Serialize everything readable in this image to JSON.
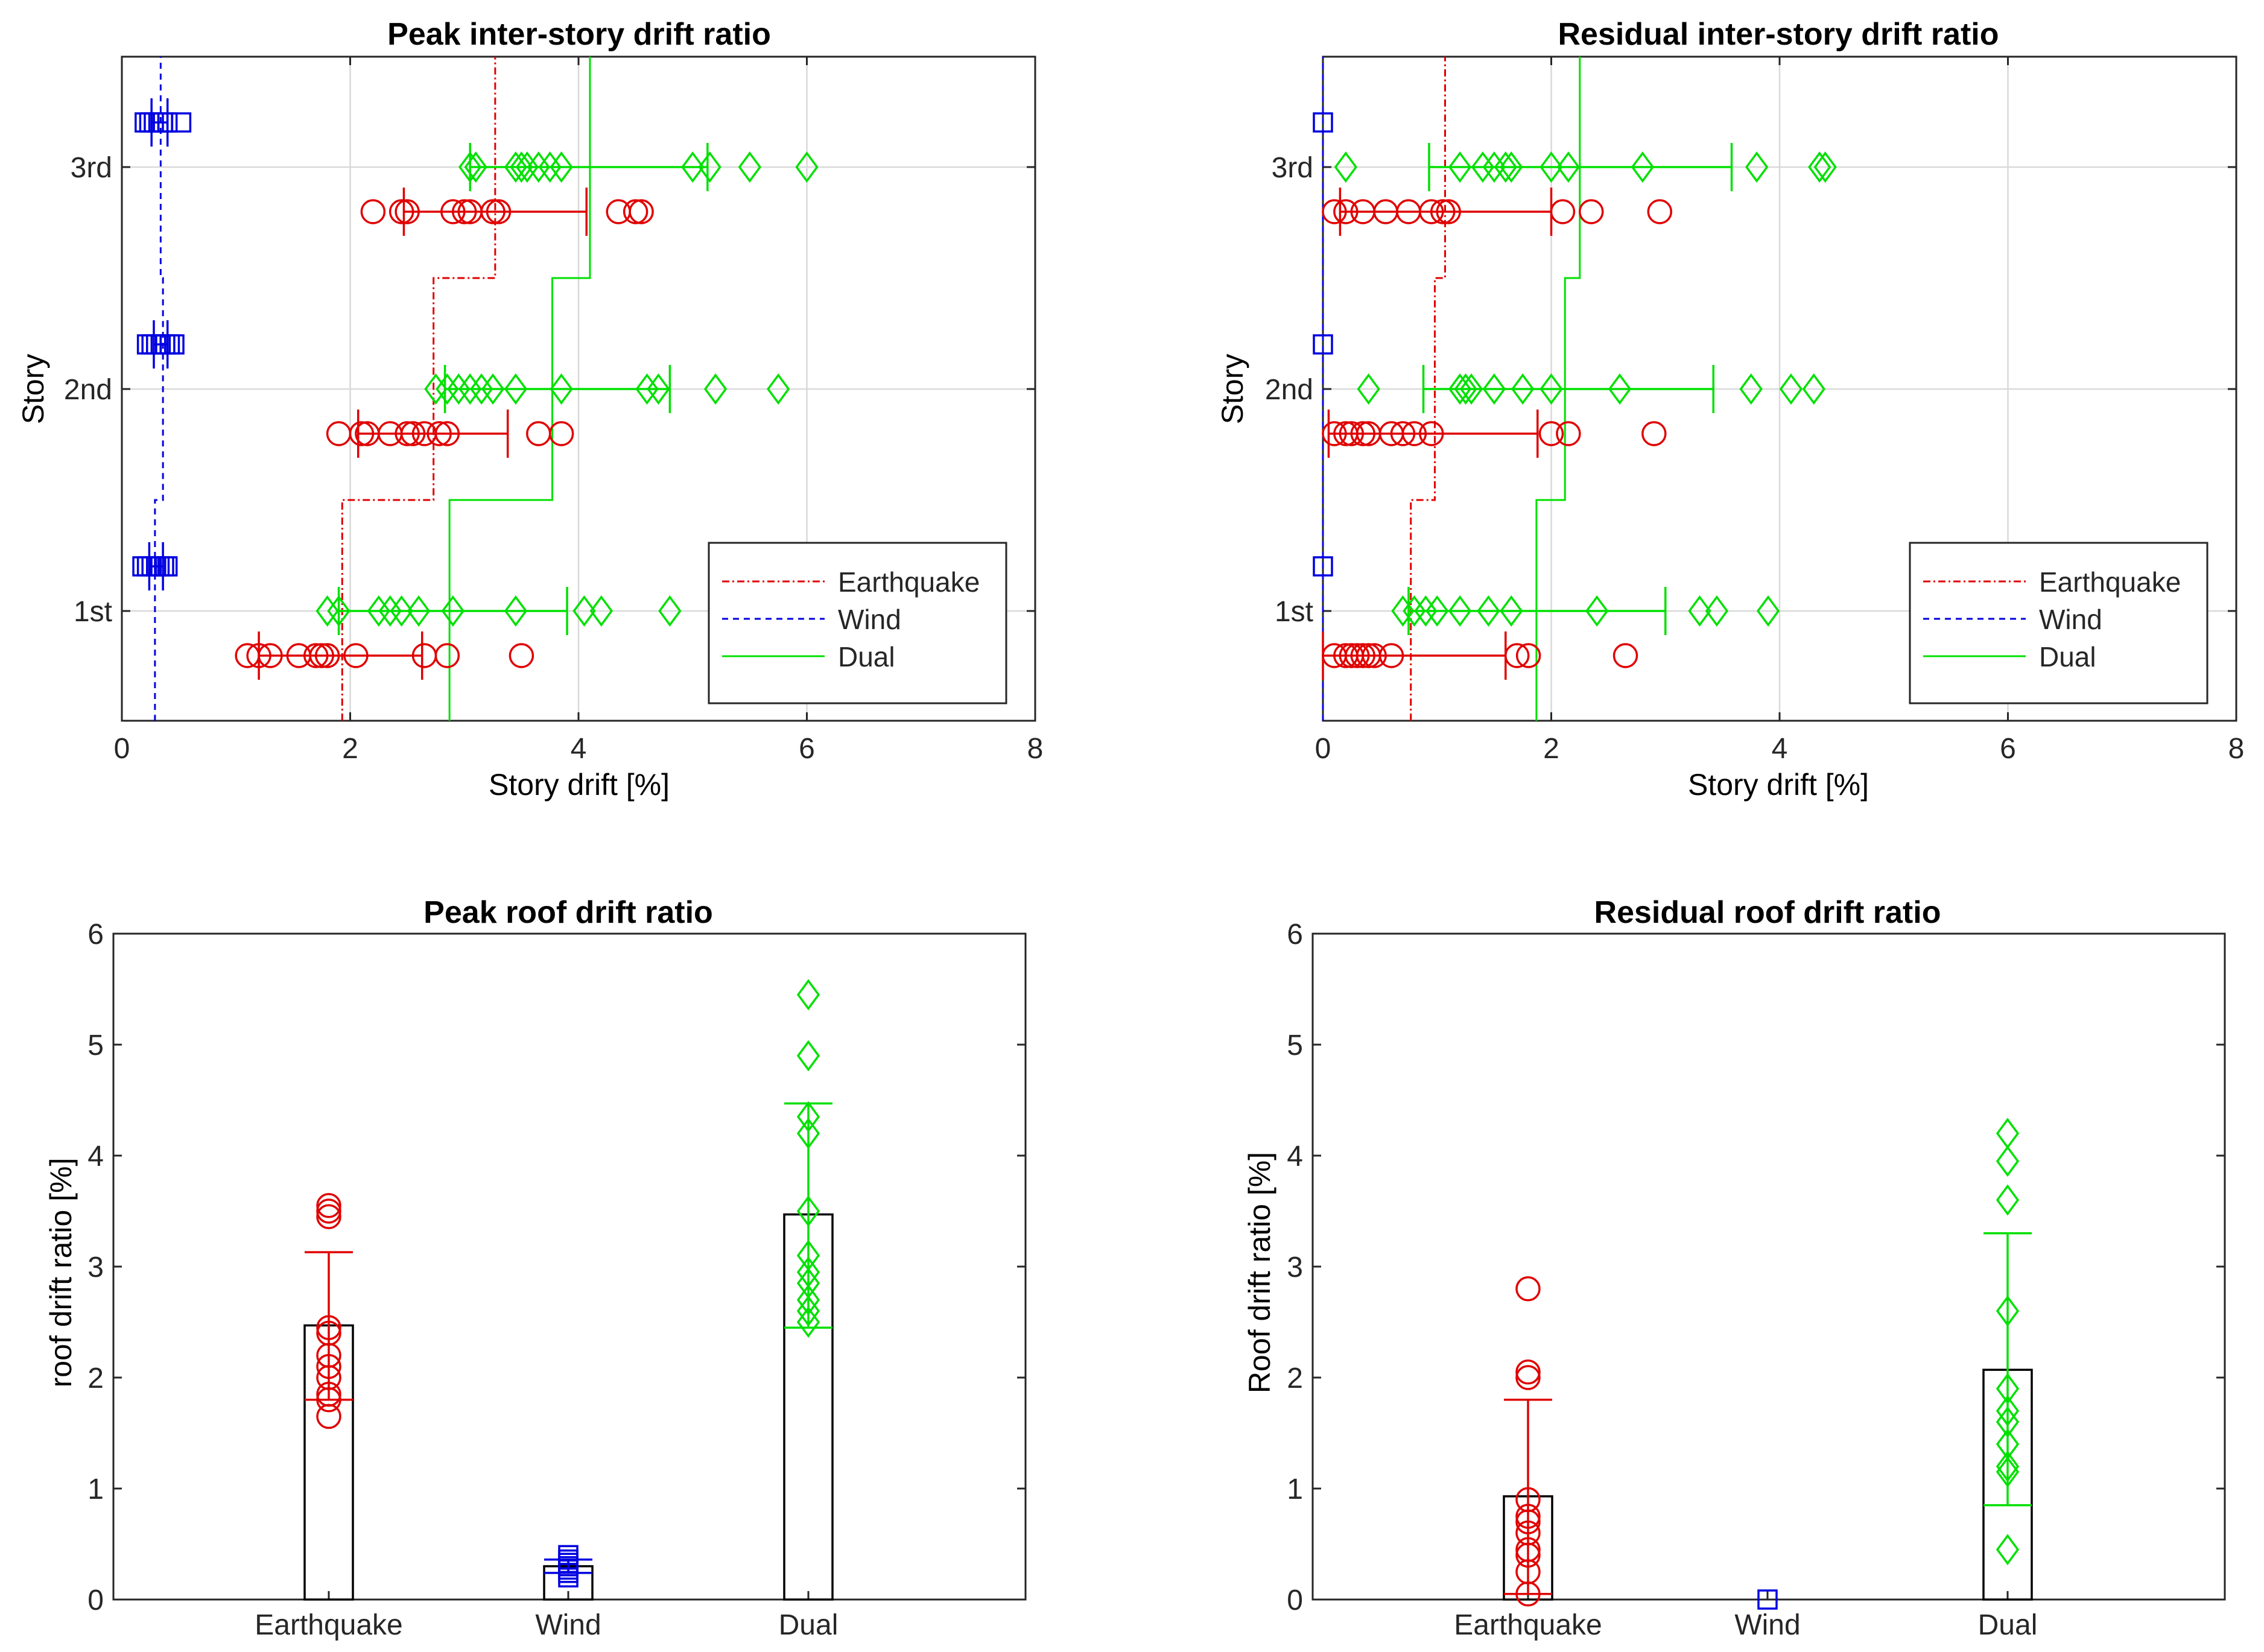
{
  "colors": {
    "earthquake": "#e00000",
    "wind": "#0000e0",
    "dual": "#00e000",
    "axis": "#000000",
    "grid": "#d9d9d9"
  },
  "chart_data": [
    {
      "type": "scatter",
      "title": "Peak inter-story drift ratio",
      "xlabel": "Story drift [%]",
      "ylabel": "Story",
      "xlim": [
        0,
        8
      ],
      "xticks": [
        "0",
        "2",
        "4",
        "6",
        "8"
      ],
      "yticks": [
        "1st",
        "2nd",
        "3rd"
      ],
      "grid": true,
      "legend": [
        "Earthquake",
        "Wind",
        "Dual"
      ],
      "legend_loc": "bottom-right",
      "series": [
        {
          "name": "Earthquake",
          "marker": "circle",
          "points": {
            "1st": [
              1.1,
              1.2,
              1.3,
              1.55,
              1.7,
              1.75,
              1.8,
              2.05,
              2.65,
              2.85,
              3.5
            ],
            "2nd": [
              1.9,
              2.1,
              2.15,
              2.35,
              2.5,
              2.55,
              2.65,
              2.78,
              2.85,
              3.65,
              3.85
            ],
            "3rd": [
              2.2,
              2.45,
              2.5,
              2.9,
              3.0,
              3.05,
              3.25,
              3.3,
              4.35,
              4.5,
              4.55
            ]
          },
          "errorbars": {
            "1st": [
              1.2,
              2.63
            ],
            "2nd": [
              2.07,
              3.38
            ],
            "3rd": [
              2.47,
              4.07
            ]
          },
          "stairs": [
            1.93,
            2.73,
            3.27
          ]
        },
        {
          "name": "Wind",
          "marker": "square",
          "points": {
            "1st": [
              0.18,
              0.22,
              0.26,
              0.3,
              0.33,
              0.37,
              0.4
            ],
            "2nd": [
              0.22,
              0.26,
              0.3,
              0.34,
              0.38,
              0.42,
              0.46
            ],
            "3rd": [
              0.2,
              0.24,
              0.28,
              0.32,
              0.36,
              0.4,
              0.52
            ]
          },
          "errorbars": {
            "1st": [
              0.24,
              0.36
            ],
            "2nd": [
              0.28,
              0.4
            ],
            "3rd": [
              0.26,
              0.4
            ]
          },
          "stairs": [
            0.29,
            0.36,
            0.34
          ]
        },
        {
          "name": "Dual",
          "marker": "diamond",
          "points": {
            "1st": [
              1.8,
              1.9,
              2.25,
              2.35,
              2.45,
              2.6,
              2.9,
              3.45,
              4.05,
              4.2,
              4.8
            ],
            "2nd": [
              2.75,
              2.85,
              2.95,
              3.05,
              3.15,
              3.25,
              3.45,
              3.85,
              4.6,
              4.7,
              5.2,
              5.75
            ],
            "3rd": [
              3.05,
              3.1,
              3.45,
              3.5,
              3.55,
              3.65,
              3.75,
              3.85,
              5.0,
              5.15,
              5.5,
              6.0
            ]
          },
          "errorbars": {
            "1st": [
              1.9,
              3.9
            ],
            "2nd": [
              2.83,
              4.8
            ],
            "3rd": [
              3.05,
              5.13
            ]
          },
          "stairs": [
            2.87,
            3.77,
            4.1
          ]
        }
      ]
    },
    {
      "type": "scatter",
      "title": "Residual inter-story drift ratio",
      "xlabel": "Story drift [%]",
      "ylabel": "Story",
      "xlim": [
        0,
        8
      ],
      "xticks": [
        "0",
        "2",
        "4",
        "6",
        "8"
      ],
      "yticks": [
        "1st",
        "2nd",
        "3rd"
      ],
      "grid": true,
      "legend": [
        "Earthquake",
        "Wind",
        "Dual"
      ],
      "legend_loc": "bottom-right",
      "series": [
        {
          "name": "Earthquake",
          "marker": "circle",
          "points": {
            "1st": [
              0.1,
              0.2,
              0.25,
              0.3,
              0.35,
              0.4,
              0.45,
              0.6,
              1.7,
              1.8,
              2.65
            ],
            "2nd": [
              0.1,
              0.2,
              0.25,
              0.35,
              0.4,
              0.6,
              0.7,
              0.8,
              0.95,
              2.0,
              2.15,
              2.9
            ],
            "3rd": [
              0.1,
              0.2,
              0.35,
              0.55,
              0.75,
              0.95,
              1.05,
              1.1,
              2.1,
              2.35,
              2.95
            ]
          },
          "errorbars": {
            "1st": [
              0.0,
              1.6
            ],
            "2nd": [
              0.05,
              1.88
            ],
            "3rd": [
              0.15,
              2.0
            ]
          },
          "stairs": [
            0.77,
            0.98,
            1.07
          ]
        },
        {
          "name": "Wind",
          "marker": "square",
          "points": {
            "1st": [
              0.0
            ],
            "2nd": [
              0.0
            ],
            "3rd": [
              0.0
            ]
          },
          "errorbars": {
            "1st": [
              0.0,
              0.0
            ],
            "2nd": [
              0.0,
              0.0
            ],
            "3rd": [
              0.0,
              0.0
            ]
          },
          "stairs": [
            0.0,
            0.0,
            0.0
          ]
        },
        {
          "name": "Dual",
          "marker": "diamond",
          "points": {
            "1st": [
              0.7,
              0.8,
              0.9,
              1.0,
              1.2,
              1.45,
              1.65,
              2.4,
              3.3,
              3.45,
              3.9
            ],
            "2nd": [
              0.4,
              1.2,
              1.25,
              1.3,
              1.5,
              1.75,
              2.0,
              2.6,
              3.75,
              4.1,
              4.3
            ],
            "3rd": [
              0.2,
              1.2,
              1.4,
              1.5,
              1.6,
              1.65,
              2.0,
              2.15,
              2.8,
              3.8,
              4.35,
              4.4
            ]
          },
          "errorbars": {
            "1st": [
              0.75,
              3.0
            ],
            "2nd": [
              0.88,
              3.42
            ],
            "3rd": [
              0.93,
              3.58
            ]
          },
          "stairs": [
            1.87,
            2.12,
            2.25
          ]
        }
      ]
    },
    {
      "type": "bar",
      "title": "Peak roof drift ratio",
      "xlabel": "",
      "ylabel": "roof drift ratio [%]",
      "ylim": [
        0,
        6
      ],
      "yticks": [
        "0",
        "1",
        "2",
        "3",
        "4",
        "5",
        "6"
      ],
      "categories": [
        "Earthquake",
        "Wind",
        "Dual"
      ],
      "values": [
        2.47,
        0.3,
        3.47
      ],
      "errorbars": [
        [
          1.8,
          3.13
        ],
        [
          0.24,
          0.36
        ],
        [
          2.45,
          4.47
        ]
      ],
      "points": [
        [
          1.65,
          1.8,
          1.85,
          2.0,
          2.1,
          2.2,
          2.4,
          2.45,
          3.45,
          3.5,
          3.55
        ],
        [
          0.2,
          0.24,
          0.27,
          0.3,
          0.33,
          0.36,
          0.4
        ],
        [
          2.5,
          2.6,
          2.7,
          2.85,
          2.95,
          3.1,
          3.5,
          4.2,
          4.35,
          4.9,
          5.45
        ]
      ],
      "markers": [
        "circle",
        "square",
        "diamond"
      ]
    },
    {
      "type": "bar",
      "title": "Residual roof drift ratio",
      "xlabel": "",
      "ylabel": "Roof drift ratio [%]",
      "ylim": [
        0,
        6
      ],
      "yticks": [
        "0",
        "1",
        "2",
        "3",
        "4",
        "5",
        "6"
      ],
      "categories": [
        "Earthquake",
        "Wind",
        "Dual"
      ],
      "values": [
        0.93,
        0.0,
        2.07
      ],
      "errorbars": [
        [
          0.05,
          1.8
        ],
        [
          0.0,
          0.0
        ],
        [
          0.85,
          3.3
        ]
      ],
      "points": [
        [
          0.05,
          0.25,
          0.4,
          0.45,
          0.6,
          0.7,
          0.75,
          0.9,
          2.0,
          2.05,
          2.8
        ],
        [
          0.0
        ],
        [
          0.45,
          1.15,
          1.2,
          1.4,
          1.6,
          1.7,
          1.9,
          2.6,
          3.6,
          3.95,
          4.2
        ]
      ],
      "markers": [
        "circle",
        "square",
        "diamond"
      ]
    }
  ]
}
